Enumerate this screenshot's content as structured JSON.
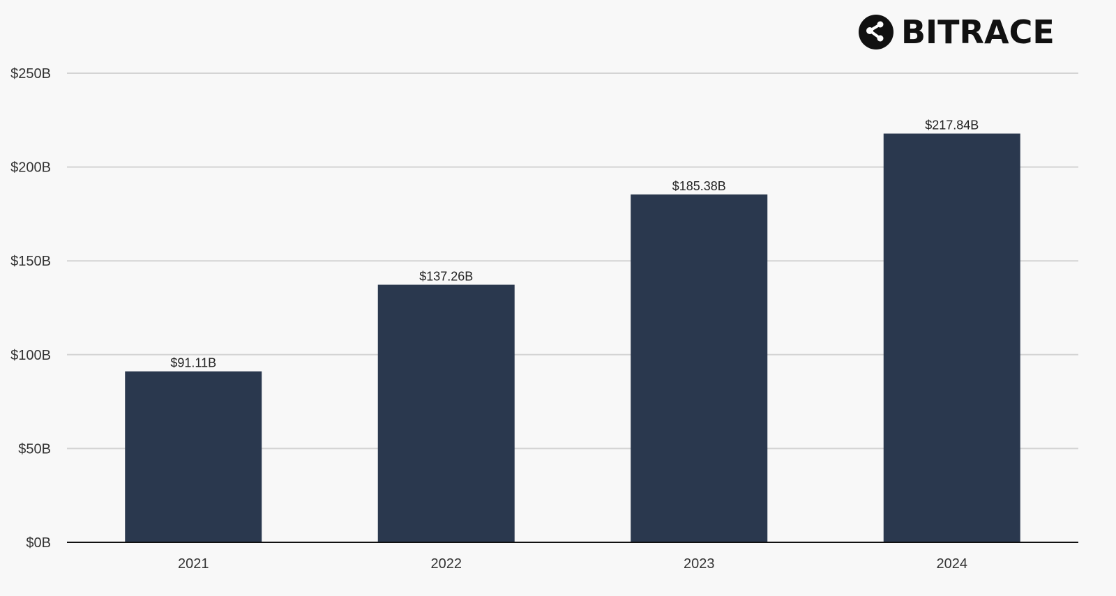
{
  "brand": {
    "name": "BITRACE"
  },
  "chart_data": {
    "type": "bar",
    "categories": [
      "2021",
      "2022",
      "2023",
      "2024"
    ],
    "values": [
      91.11,
      137.26,
      185.38,
      217.84
    ],
    "value_labels": [
      "$91.11B",
      "$137.26B",
      "$185.38B",
      "$217.84B"
    ],
    "ylim": [
      0,
      250
    ],
    "yticks": [
      0,
      50,
      100,
      150,
      200,
      250
    ],
    "ytick_labels": [
      "$0B",
      "$50B",
      "$100B",
      "$150B",
      "$200B",
      "$250B"
    ],
    "title": "",
    "xlabel": "",
    "ylabel": "",
    "grid": true,
    "legend": "none",
    "bar_color": "#2a384e",
    "grid_color": "#d4d4d4",
    "axis_color": "#111111"
  }
}
